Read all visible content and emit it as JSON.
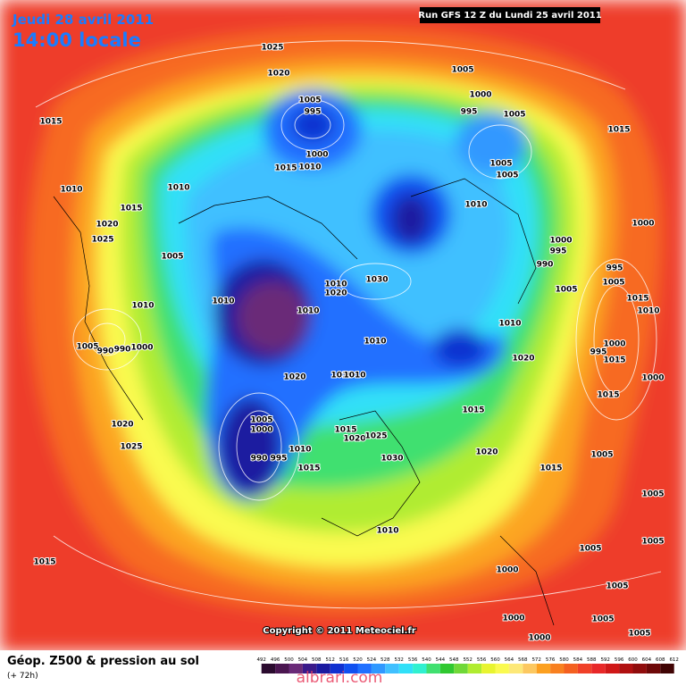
{
  "header": {
    "date": "Jeudi 28 avril 2011",
    "time": "14:00 locale",
    "run": "Run GFS 12 Z du Lundi 25 avril 2011"
  },
  "map": {
    "isobar_labels": [
      1025,
      1020,
      1005,
      1000,
      1005,
      995,
      995,
      1005,
      1015,
      1015,
      1000,
      1015,
      1010,
      1005,
      1005,
      1010,
      1010,
      1015,
      1010,
      1020,
      1000,
      1025,
      1000,
      995,
      995,
      990,
      1005,
      1030,
      1010,
      1020,
      1005,
      1005,
      1015,
      1010,
      1010,
      1010,
      1010,
      1010,
      1010,
      1005,
      990,
      990,
      1000,
      1000,
      995,
      1020,
      1015,
      1020,
      1010,
      1010,
      1000,
      1015,
      1015,
      1005,
      1000,
      1020,
      1015,
      1020,
      1025,
      1010,
      1025,
      1020,
      990,
      995,
      1030,
      1005,
      1015,
      1015,
      1005,
      1010,
      1005,
      1015,
      1005,
      1000,
      1005,
      1000,
      1005,
      1000,
      1005
    ],
    "copyright": "Copyright © 2011 Meteociel.fr"
  },
  "footer": {
    "title": "Géop. Z500 & pression au sol",
    "lead_time": "(+ 72h)",
    "watermark": "albrari.com"
  },
  "colorbar": {
    "values": [
      492,
      496,
      500,
      504,
      508,
      512,
      516,
      520,
      524,
      528,
      532,
      536,
      540,
      544,
      548,
      552,
      556,
      560,
      564,
      568,
      572,
      576,
      580,
      584,
      588,
      592,
      596,
      600,
      604,
      608,
      612
    ],
    "colors": [
      "#2a0a2e",
      "#4a1550",
      "#6a2a78",
      "#3a1a8a",
      "#1a1aa0",
      "#1030d0",
      "#1050f0",
      "#2070ff",
      "#3098ff",
      "#40c0ff",
      "#30e0f8",
      "#30f0d0",
      "#40e070",
      "#30c830",
      "#70d838",
      "#b0ec30",
      "#e8f430",
      "#fafa50",
      "#fde878",
      "#fcc860",
      "#fca020",
      "#f88020",
      "#f46020",
      "#f04028",
      "#e82828",
      "#d01818",
      "#b01010",
      "#900c0c",
      "#6e0808",
      "#400404"
    ]
  }
}
